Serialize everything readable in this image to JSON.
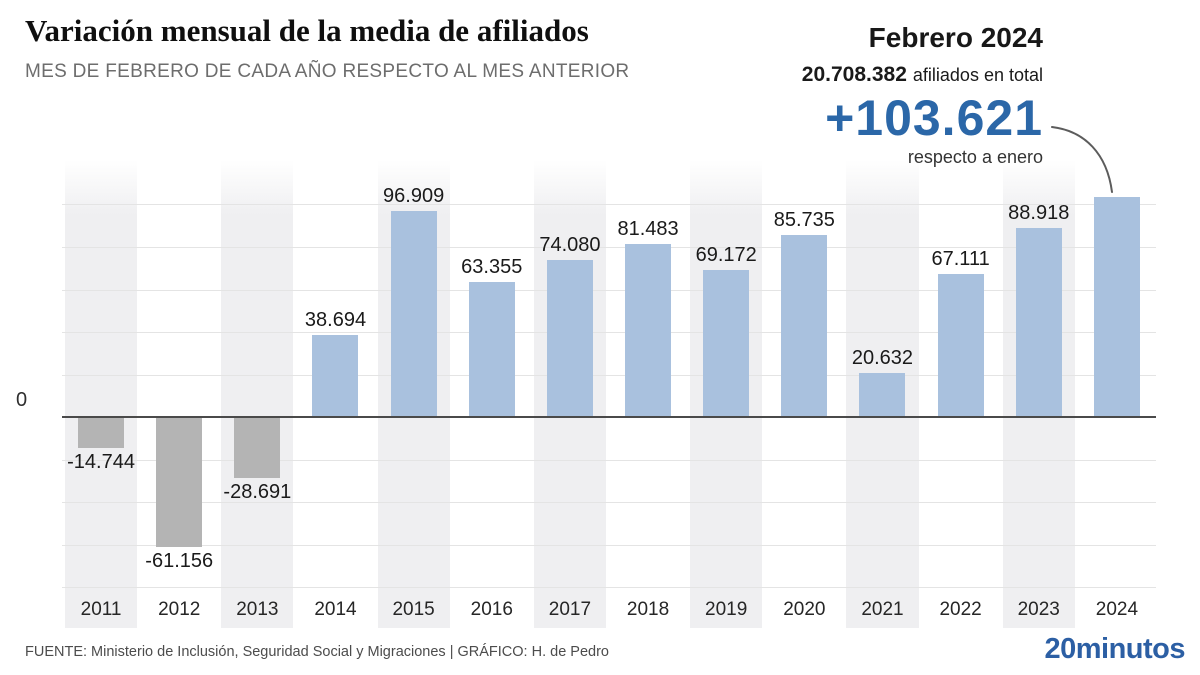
{
  "header": {
    "title": "Variación mensual de la media de afiliados",
    "subtitle": "MES DE FEBRERO DE CADA AÑO RESPECTO AL MES ANTERIOR"
  },
  "callout": {
    "period": "Febrero 2024",
    "total_value": "20.708.382",
    "total_label": "afiliados en total",
    "delta": "+103.621",
    "delta_ref": "respecto a enero"
  },
  "chart_data": {
    "type": "bar",
    "title": "Variación mensual de la media de afiliados",
    "subtitle": "MES DE FEBRERO DE CADA AÑO RESPECTO AL MES ANTERIOR",
    "categories": [
      "2011",
      "2012",
      "2013",
      "2014",
      "2015",
      "2016",
      "2017",
      "2018",
      "2019",
      "2020",
      "2021",
      "2022",
      "2023",
      "2024"
    ],
    "values": [
      -14744,
      -61156,
      -28691,
      38694,
      96909,
      63355,
      74080,
      81483,
      69172,
      85735,
      20632,
      67111,
      88918,
      103621
    ],
    "bar_labels": [
      "-14.744",
      "-61.156",
      "-28.691",
      "38.694",
      "96.909",
      "63.355",
      "74.080",
      "81.483",
      "69.172",
      "85.735",
      "20.632",
      "67.111",
      "88.918",
      ""
    ],
    "xlabel": "",
    "ylabel": "",
    "zero_label": "0",
    "ylim": [
      -90000,
      110000
    ],
    "gridline_step": 20000,
    "grid": true,
    "legend": "none",
    "striped_background_years": [
      "2011",
      "2013",
      "2015",
      "2017",
      "2019",
      "2021",
      "2023"
    ],
    "colors": {
      "positive_bar": "#a9c1de",
      "negative_bar": "#b4b4b4",
      "band": "#efeff1",
      "gridline": "#e4e4e4",
      "zero_line": "#4a4a4a",
      "accent_blue": "#2b67a8",
      "logo_blue": "#2c5fa4",
      "arrow": "#5c5c5c"
    }
  },
  "footer": {
    "source": "FUENTE: Ministerio de Inclusión, Seguridad Social y Migraciones  |  GRÁFICO: H. de Pedro",
    "logo": "20minutos"
  }
}
